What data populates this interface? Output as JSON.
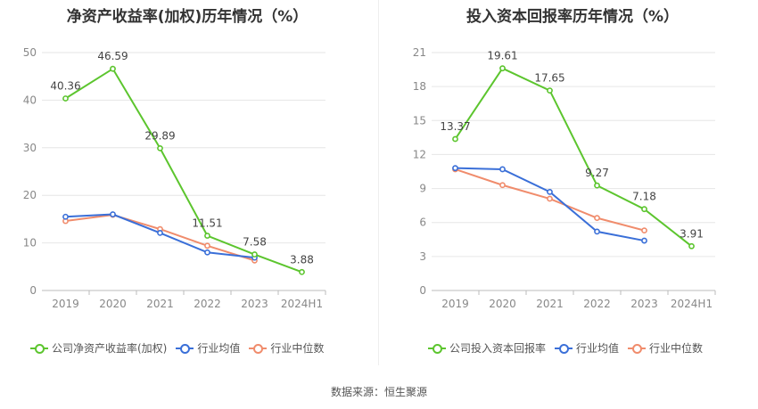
{
  "source_label": "数据来源：恒生聚源",
  "chart_data": [
    {
      "type": "line",
      "title": "净资产收益率(加权)历年情况（%）",
      "categories": [
        "2019",
        "2020",
        "2021",
        "2022",
        "2023",
        "2024H1"
      ],
      "ylim": [
        0,
        50
      ],
      "yticks": [
        0,
        10,
        20,
        30,
        40,
        50
      ],
      "grid": true,
      "legend_position": "bottom",
      "series": [
        {
          "name": "公司净资产收益率(加权)",
          "color": "#5cc52e",
          "values": [
            40.36,
            46.59,
            29.89,
            11.51,
            7.58,
            3.88
          ],
          "labels": [
            "40.36",
            "46.59",
            "29.89",
            "11.51",
            "7.58",
            "3.88"
          ]
        },
        {
          "name": "行业均值",
          "color": "#3a6fd8",
          "values": [
            15.5,
            16.0,
            12.1,
            8.0,
            6.9,
            null
          ]
        },
        {
          "name": "行业中位数",
          "color": "#f08c6c",
          "values": [
            14.6,
            15.9,
            12.9,
            9.4,
            6.3,
            null
          ]
        }
      ]
    },
    {
      "type": "line",
      "title": "投入资本回报率历年情况（%）",
      "categories": [
        "2019",
        "2020",
        "2021",
        "2022",
        "2023",
        "2024H1"
      ],
      "ylim": [
        0,
        21
      ],
      "yticks": [
        0,
        3,
        6,
        9,
        12,
        15,
        18,
        21
      ],
      "grid": true,
      "legend_position": "bottom",
      "series": [
        {
          "name": "公司投入资本回报率",
          "color": "#5cc52e",
          "values": [
            13.37,
            19.61,
            17.65,
            9.27,
            7.18,
            3.91
          ],
          "labels": [
            "13.37",
            "19.61",
            "17.65",
            "9.27",
            "7.18",
            "3.91"
          ]
        },
        {
          "name": "行业均值",
          "color": "#3a6fd8",
          "values": [
            10.8,
            10.7,
            8.7,
            5.2,
            4.4,
            null
          ]
        },
        {
          "name": "行业中位数",
          "color": "#f08c6c",
          "values": [
            10.7,
            9.3,
            8.1,
            6.4,
            5.3,
            null
          ]
        }
      ]
    }
  ]
}
